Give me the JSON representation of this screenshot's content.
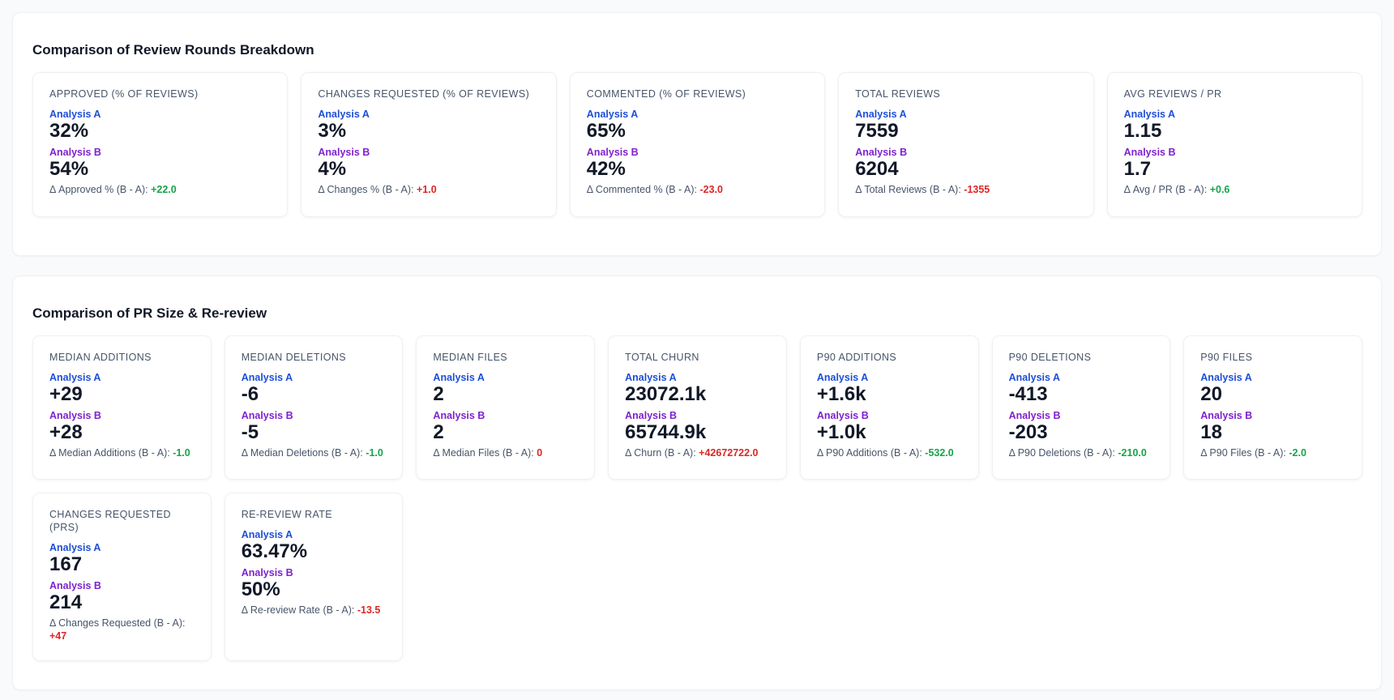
{
  "labels": {
    "a": "Analysis A",
    "b": "Analysis B"
  },
  "sections": [
    {
      "title": "Comparison of Review Rounds Breakdown",
      "cards": [
        {
          "label": "APPROVED (% OF REVIEWS)",
          "a_value": "32%",
          "b_value": "54%",
          "delta_label": "Δ Approved % (B - A):",
          "delta_value": "+22.0",
          "delta_color": "#16a34a"
        },
        {
          "label": "CHANGES REQUESTED (% OF REVIEWS)",
          "a_value": "3%",
          "b_value": "4%",
          "delta_label": "Δ Changes % (B - A):",
          "delta_value": "+1.0",
          "delta_color": "#dc2626"
        },
        {
          "label": "COMMENTED (% OF REVIEWS)",
          "a_value": "65%",
          "b_value": "42%",
          "delta_label": "Δ Commented % (B - A):",
          "delta_value": "-23.0",
          "delta_color": "#dc2626"
        },
        {
          "label": "TOTAL REVIEWS",
          "a_value": "7559",
          "b_value": "6204",
          "delta_label": "Δ Total Reviews (B - A):",
          "delta_value": "-1355",
          "delta_color": "#dc2626"
        },
        {
          "label": "AVG REVIEWS / PR",
          "a_value": "1.15",
          "b_value": "1.7",
          "delta_label": "Δ Avg / PR (B - A):",
          "delta_value": "+0.6",
          "delta_color": "#16a34a"
        }
      ]
    },
    {
      "title": "Comparison of PR Size & Re-review",
      "cards": [
        {
          "label": "MEDIAN ADDITIONS",
          "a_value": "+29",
          "b_value": "+28",
          "delta_label": "Δ Median Additions (B - A):",
          "delta_value": "-1.0",
          "delta_color": "#16a34a"
        },
        {
          "label": "MEDIAN DELETIONS",
          "a_value": "-6",
          "b_value": "-5",
          "delta_label": "Δ Median Deletions (B - A):",
          "delta_value": "-1.0",
          "delta_color": "#16a34a"
        },
        {
          "label": "MEDIAN FILES",
          "a_value": "2",
          "b_value": "2",
          "delta_label": "Δ Median Files (B - A):",
          "delta_value": "0",
          "delta_color": "#dc2626"
        },
        {
          "label": "TOTAL CHURN",
          "a_value": "23072.1k",
          "b_value": "65744.9k",
          "delta_label": "Δ Churn (B - A):",
          "delta_value": "+42672722.0",
          "delta_color": "#dc2626"
        },
        {
          "label": "P90 ADDITIONS",
          "a_value": "+1.6k",
          "b_value": "+1.0k",
          "delta_label": "Δ P90 Additions (B - A):",
          "delta_value": "-532.0",
          "delta_color": "#16a34a"
        },
        {
          "label": "P90 DELETIONS",
          "a_value": "-413",
          "b_value": "-203",
          "delta_label": "Δ P90 Deletions (B - A):",
          "delta_value": "-210.0",
          "delta_color": "#16a34a"
        },
        {
          "label": "P90 FILES",
          "a_value": "20",
          "b_value": "18",
          "delta_label": "Δ P90 Files (B - A):",
          "delta_value": "-2.0",
          "delta_color": "#16a34a"
        },
        {
          "label": "CHANGES REQUESTED (PRS)",
          "a_value": "167",
          "b_value": "214",
          "delta_label": "Δ Changes Requested (B - A):",
          "delta_value": "+47",
          "delta_color": "#dc2626"
        },
        {
          "label": "RE-REVIEW RATE",
          "a_value": "63.47%",
          "b_value": "50%",
          "delta_label": "Δ Re-review Rate (B - A):",
          "delta_value": "-13.5",
          "delta_color": "#dc2626"
        }
      ]
    }
  ]
}
